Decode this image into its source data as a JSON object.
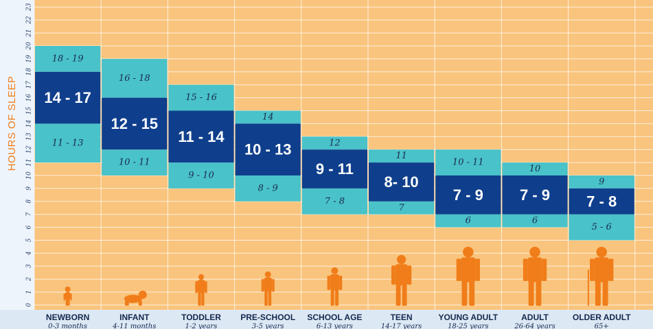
{
  "chart_data": {
    "type": "bar",
    "ylabel": "HOURS OF SLEEP",
    "ylim": [
      0,
      23
    ],
    "yticks": [
      0,
      1,
      2,
      3,
      4,
      5,
      6,
      7,
      8,
      9,
      10,
      11,
      12,
      13,
      14,
      15,
      16,
      17,
      18,
      19,
      20,
      21,
      22,
      23
    ],
    "grid": true,
    "colors": {
      "background": "#f9c47d",
      "recommended": "#0f3f8c",
      "may_be_appropriate": "#49c2c9",
      "silhouette": "#f07d1a",
      "axis_text": "#f07d1a"
    },
    "categories": [
      {
        "name": "NEWBORN",
        "age": "0-3 months",
        "may_be_appropriate_low": [
          11,
          13
        ],
        "recommended": [
          14,
          17
        ],
        "may_be_appropriate_high": [
          18,
          19
        ],
        "low_label": "11 - 13",
        "rec_label": "14 - 17",
        "high_label": "18 - 19"
      },
      {
        "name": "INFANT",
        "age": "4-11 months",
        "may_be_appropriate_low": [
          10,
          11
        ],
        "recommended": [
          12,
          15
        ],
        "may_be_appropriate_high": [
          16,
          18
        ],
        "low_label": "10 - 11",
        "rec_label": "12 - 15",
        "high_label": "16 - 18"
      },
      {
        "name": "TODDLER",
        "age": "1-2 years",
        "may_be_appropriate_low": [
          9,
          10
        ],
        "recommended": [
          11,
          14
        ],
        "may_be_appropriate_high": [
          15,
          16
        ],
        "low_label": "9 - 10",
        "rec_label": "11 - 14",
        "high_label": "15 - 16"
      },
      {
        "name": "PRE-SCHOOL",
        "age": "3-5 years",
        "may_be_appropriate_low": [
          8,
          9
        ],
        "recommended": [
          10,
          13
        ],
        "may_be_appropriate_high": [
          14,
          14
        ],
        "low_label": "8 - 9",
        "rec_label": "10 - 13",
        "high_label": "14"
      },
      {
        "name": "SCHOOL AGE",
        "age": "6-13 years",
        "may_be_appropriate_low": [
          7,
          8
        ],
        "recommended": [
          9,
          11
        ],
        "may_be_appropriate_high": [
          12,
          12
        ],
        "low_label": "7 - 8",
        "rec_label": "9 - 11",
        "high_label": "12"
      },
      {
        "name": "TEEN",
        "age": "14-17 years",
        "may_be_appropriate_low": [
          7,
          7
        ],
        "recommended": [
          8,
          10
        ],
        "may_be_appropriate_high": [
          11,
          11
        ],
        "low_label": "7",
        "rec_label": "8- 10",
        "high_label": "11"
      },
      {
        "name": "YOUNG ADULT",
        "age": "18-25 years",
        "may_be_appropriate_low": [
          6,
          6
        ],
        "recommended": [
          7,
          9
        ],
        "may_be_appropriate_high": [
          10,
          11
        ],
        "low_label": "6",
        "rec_label": "7 - 9",
        "high_label": "10 - 11"
      },
      {
        "name": "ADULT",
        "age": "26-64 years",
        "may_be_appropriate_low": [
          6,
          6
        ],
        "recommended": [
          7,
          9
        ],
        "may_be_appropriate_high": [
          10,
          10
        ],
        "low_label": "6",
        "rec_label": "7 - 9",
        "high_label": "10"
      },
      {
        "name": "OLDER ADULT",
        "age": "65+",
        "may_be_appropriate_low": [
          5,
          6
        ],
        "recommended": [
          7,
          8
        ],
        "may_be_appropriate_high": [
          9,
          9
        ],
        "low_label": "5 - 6",
        "rec_label": "7 - 8",
        "high_label": "9"
      }
    ],
    "silhouette_icons": [
      "baby-standing-icon",
      "baby-crawling-icon",
      "toddler-icon",
      "preschooler-icon",
      "school-child-icon",
      "teen-icon",
      "young-adult-icon",
      "adult-woman-icon",
      "older-adult-cane-icon"
    ]
  }
}
